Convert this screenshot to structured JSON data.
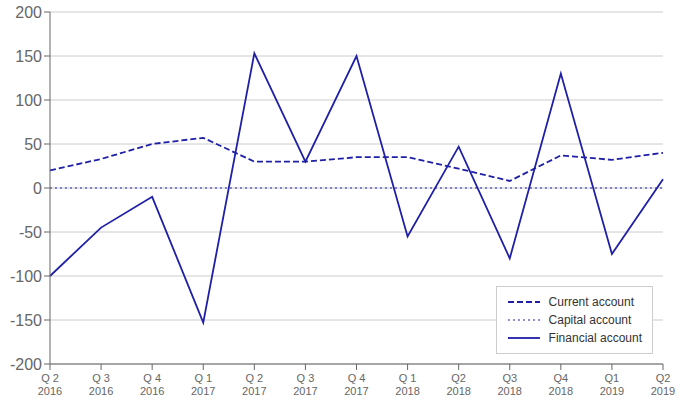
{
  "chart_data": {
    "type": "line",
    "categories": [
      "Q 2\n2016",
      "Q 3\n2016",
      "Q 4\n2016",
      "Q 1\n2017",
      "Q 2\n2017",
      "Q 3\n2017",
      "Q 4\n2017",
      "Q 1\n2018",
      "Q2\n2018",
      "Q3\n2018",
      "Q4\n2018",
      "Q1\n2019",
      "Q2\n2019"
    ],
    "series": [
      {
        "name": "Current account",
        "color": "#1f1fa8",
        "line_style": "dashed",
        "values": [
          20,
          33,
          50,
          57,
          30,
          30,
          35,
          35,
          22,
          8,
          37,
          32,
          40
        ]
      },
      {
        "name": "Capital account",
        "color": "#1f1fa8",
        "line_style": "dotted",
        "values": [
          0,
          0,
          0,
          0,
          0,
          0,
          0,
          0,
          0,
          0,
          0,
          0,
          0
        ]
      },
      {
        "name": "Financial account",
        "color": "#1f1fa8",
        "line_style": "solid",
        "values": [
          -100,
          -45,
          -10,
          -153,
          153,
          30,
          150,
          -55,
          47,
          -80,
          130,
          -75,
          10
        ]
      }
    ],
    "ylim": [
      -200,
      200
    ],
    "yticks": [
      -200,
      -150,
      -100,
      -50,
      0,
      50,
      100,
      150,
      200
    ],
    "grid": true,
    "legend": "lower right"
  }
}
